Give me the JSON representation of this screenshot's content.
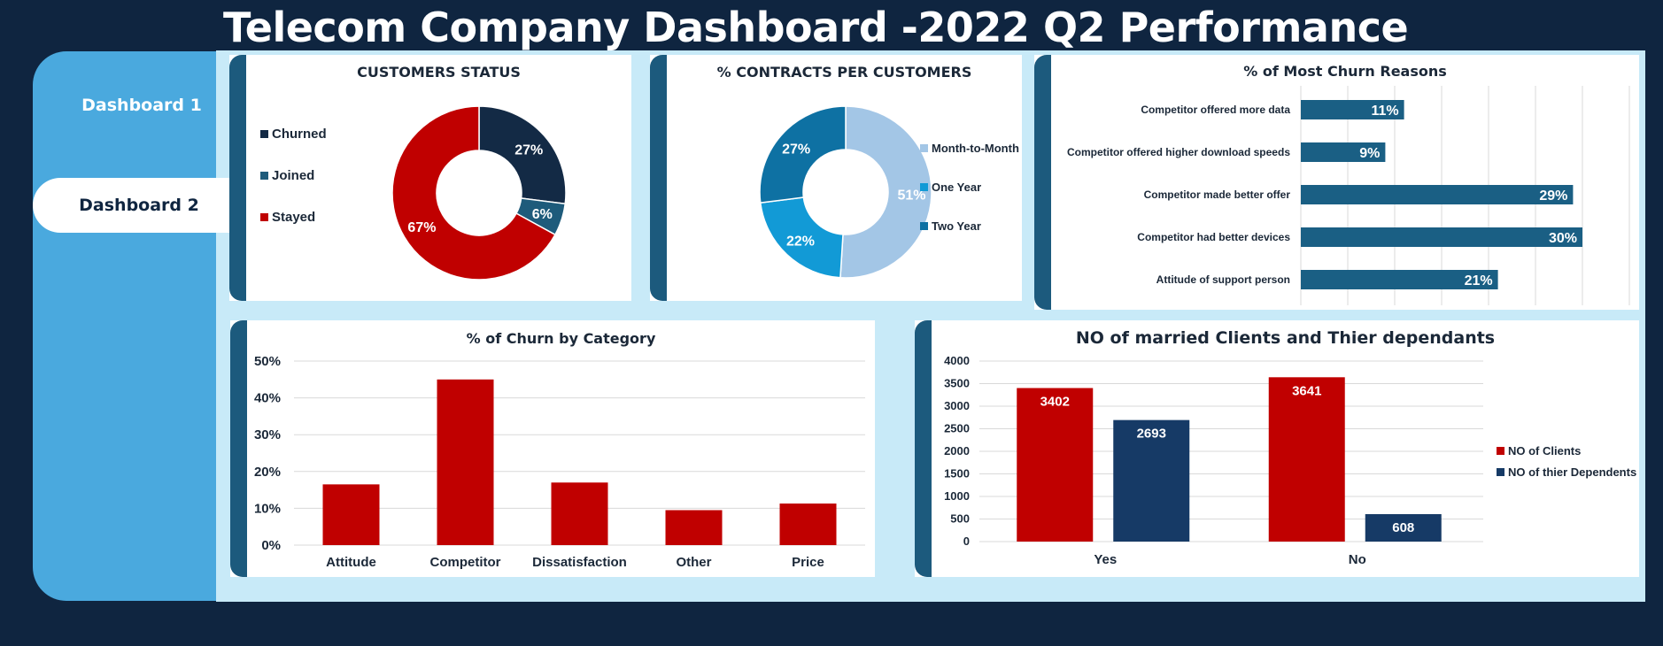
{
  "header": {
    "title": "Telecom Company Dashboard -2022 Q2 Performance"
  },
  "sidebar": {
    "items": [
      {
        "label": "Dashboard 1"
      },
      {
        "label": "Dashboard 2"
      }
    ]
  },
  "colors": {
    "background": "#0f2540",
    "sidebar": "#4aa9de",
    "panel": "#c8eaf8",
    "accent": "#1c5a7d",
    "red": "#c00000",
    "navy": "#163a66"
  },
  "chart_data": [
    {
      "type": "pie",
      "title": "CUSTOMERS STATUS",
      "legend_position": "left",
      "series": [
        {
          "name": "Churned",
          "value": 27,
          "label": "27%",
          "color": "#132a45"
        },
        {
          "name": "Joined",
          "value": 6,
          "label": "6%",
          "color": "#1e5b7b"
        },
        {
          "name": "Stayed",
          "value": 67,
          "label": "67%",
          "color": "#c00000"
        }
      ]
    },
    {
      "type": "pie",
      "title": "% CONTRACTS PER CUSTOMERS",
      "legend_position": "right",
      "series": [
        {
          "name": "Month-to-Month",
          "value": 51,
          "label": "51%",
          "color": "#a3c6e6"
        },
        {
          "name": "One Year",
          "value": 22,
          "label": "22%",
          "color": "#129ad6"
        },
        {
          "name": "Two Year",
          "value": 27,
          "label": "27%",
          "color": "#0e71a3"
        }
      ]
    },
    {
      "type": "bar",
      "orientation": "horizontal",
      "title": "% of Most Churn Reasons",
      "categories": [
        "Competitor offered more data",
        "Competitor offered higher download speeds",
        "Competitor made better offer",
        "Competitor had better devices",
        "Attitude of support person"
      ],
      "values": [
        11,
        9,
        29,
        30,
        21
      ],
      "labels": [
        "11%",
        "9%",
        "29%",
        "30%",
        "21%"
      ],
      "xlim": [
        0,
        35
      ],
      "grid": true,
      "color": "#1a5f84"
    },
    {
      "type": "bar",
      "title": "% of Churn by Category",
      "categories": [
        "Attitude",
        "Competitor",
        "Dissatisfaction",
        "Other",
        "Price"
      ],
      "values": [
        16.5,
        45,
        17,
        9.5,
        11.3
      ],
      "yticks": [
        "0%",
        "10%",
        "20%",
        "30%",
        "40%",
        "50%"
      ],
      "ylim": [
        0,
        50
      ],
      "grid": true,
      "color": "#c00000"
    },
    {
      "type": "bar",
      "title": "NO of married Clients and Thier dependants",
      "categories": [
        "Yes",
        "No"
      ],
      "series": [
        {
          "name": "NO of Clients",
          "values": [
            3402,
            3641
          ],
          "color": "#c00000"
        },
        {
          "name": "NO of thier Dependents",
          "values": [
            2693,
            608
          ],
          "color": "#163a66"
        }
      ],
      "yticks": [
        "0",
        "500",
        "1000",
        "1500",
        "2000",
        "2500",
        "3000",
        "3500",
        "4000"
      ],
      "ylim": [
        0,
        4000
      ],
      "grid": true,
      "legend_position": "right"
    }
  ]
}
